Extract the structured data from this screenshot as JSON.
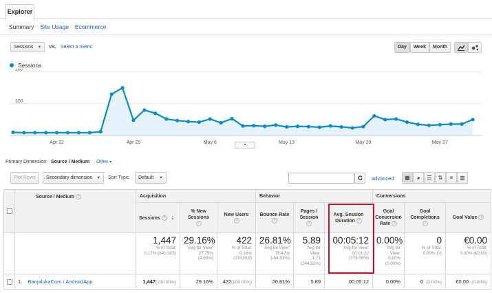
{
  "tabs": {
    "explorer": "Explorer"
  },
  "subtabs": [
    "Summary",
    "Site Usage",
    "Ecommerce"
  ],
  "metric_controls": {
    "metric": "Sessions",
    "vs": "VS.",
    "select_metric": "Select a metric"
  },
  "range_buttons": [
    "Day",
    "Week",
    "Month"
  ],
  "legend": {
    "sessions": "Sessions"
  },
  "chart_data": {
    "type": "line",
    "series": [
      {
        "name": "Sessions",
        "values": [
          10,
          9,
          9,
          9,
          9,
          9,
          9,
          9,
          12,
          130,
          150,
          48,
          80,
          70,
          52,
          47,
          44,
          42,
          52,
          40,
          53,
          30,
          31,
          29,
          33,
          27,
          29,
          28,
          26,
          30,
          27,
          24,
          28,
          62,
          50,
          52,
          42,
          35,
          32,
          34,
          36,
          36,
          50
        ]
      }
    ],
    "x_tick_labels": [
      "Apr 22",
      "Apr 29",
      "May 6",
      "May 13",
      "May 20",
      "May 27"
    ],
    "y_tick_labels": [
      "200",
      "100"
    ],
    "ylim": [
      0,
      210
    ],
    "grid": true,
    "color": "#058dc7",
    "area_fill": "#e6f2fa"
  },
  "dimension_bar": {
    "label": "Primary Dimension:",
    "current": "Source / Medium",
    "other": "Other"
  },
  "toolbar": {
    "plot_rows": "Plot Rows",
    "secondary_dimension": "Secondary dimension",
    "sort_type_label": "Sort Type:",
    "sort_type_value": "Default",
    "advanced": "advanced"
  },
  "table": {
    "group_acquisition": "Acquisition",
    "group_behavior": "Behavior",
    "group_conversions": "Conversions",
    "source_medium_header": "Source / Medium",
    "headers": {
      "sessions": "Sessions",
      "new_sessions_1": "% New",
      "new_sessions_2": "Sessions",
      "new_users": "New Users",
      "bounce_rate": "Bounce Rate",
      "pages_1": "Pages /",
      "pages_2": "Session",
      "avg_dur_1": "Avg. Session",
      "avg_dur_2": "Duration",
      "goal_conv_1": "Goal",
      "goal_conv_2": "Conversion",
      "goal_conv_3": "Rate",
      "goal_comp_1": "Goal",
      "goal_comp_2": "Completions",
      "goal_value": "Goal Value"
    },
    "totals": {
      "sessions": {
        "value": "1,447",
        "l1": "% of Total:",
        "l2": "0.17% (841,303)"
      },
      "new_sessions": {
        "value": "29.16%",
        "l1": "Avg for View:",
        "l2": "27.79%",
        "l3": "(4.93%)"
      },
      "new_users": {
        "value": "422",
        "l1": "% of Total:",
        "l2": "0.18%",
        "l3": "(233,819)"
      },
      "bounce_rate": {
        "value": "26.81%",
        "l1": "Avg for View:",
        "l2": "76.47%",
        "l3": "(-64.93%)"
      },
      "pages": {
        "value": "5.89",
        "l1": "Avg for",
        "l2": "View:",
        "l3": "1.71",
        "l4": "(244.52%)"
      },
      "avg_dur": {
        "value": "00:05:12",
        "l1": "Avg for View:",
        "l2": "00:01:22",
        "l3": "(279.08%)"
      },
      "goal_conv": {
        "value": "0.00%",
        "l1": "Avg for",
        "l2": "View:",
        "l3": "0.00%",
        "l4": "(0.00%)"
      },
      "goal_comp": {
        "value": "0",
        "l1": "% of Total:",
        "l2": "0.00% (0)"
      },
      "goal_value": {
        "value": "€0.00",
        "l1": "% of Total:",
        "l2": "0.00% (€0.00)"
      }
    },
    "rows": [
      {
        "index": "1.",
        "source": "BanjalukaCom / AndroidApp",
        "sessions": "1,447",
        "sessions_pct": "(100.00%)",
        "new_sessions": "29.16%",
        "new_users": "422",
        "new_users_pct": "(100.00%)",
        "bounce_rate": "26.81%",
        "pages": "5.89",
        "avg_dur": "00:05:12",
        "goal_conv": "0.00%",
        "goal_comp": "0",
        "goal_comp_pct": "(0.00%)",
        "goal_value": "€0.00",
        "goal_value_pct": "(0.00%)"
      }
    ]
  }
}
